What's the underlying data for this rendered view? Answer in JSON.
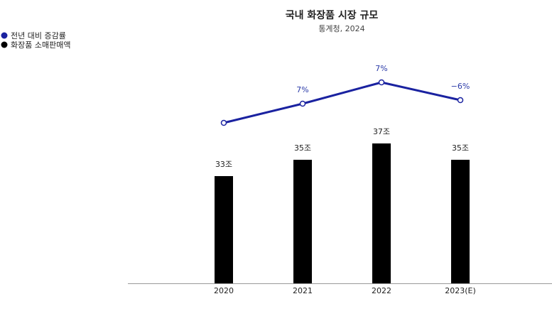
{
  "chart_data": {
    "type": "bar",
    "title": "국내 화장품 시장 규모",
    "subtitle": "통계청, 2024",
    "categories": [
      "2020",
      "2021",
      "2022",
      "2023(E)"
    ],
    "legend_position": "top-left",
    "grid": false,
    "ylim": [
      0,
      40
    ],
    "series": [
      {
        "name": "화장품 소매판매액",
        "type": "bar",
        "color": "#000000",
        "values": [
          33,
          35,
          37,
          35
        ],
        "labels": [
          "33조",
          "35조",
          "37조",
          "35조"
        ]
      },
      {
        "name": "전년 대비 증감률",
        "type": "line",
        "color": "#1a22a0",
        "values": [
          null,
          7,
          7,
          null
        ],
        "labels": [
          "",
          "7%",
          "7%",
          "−6%"
        ]
      }
    ]
  }
}
